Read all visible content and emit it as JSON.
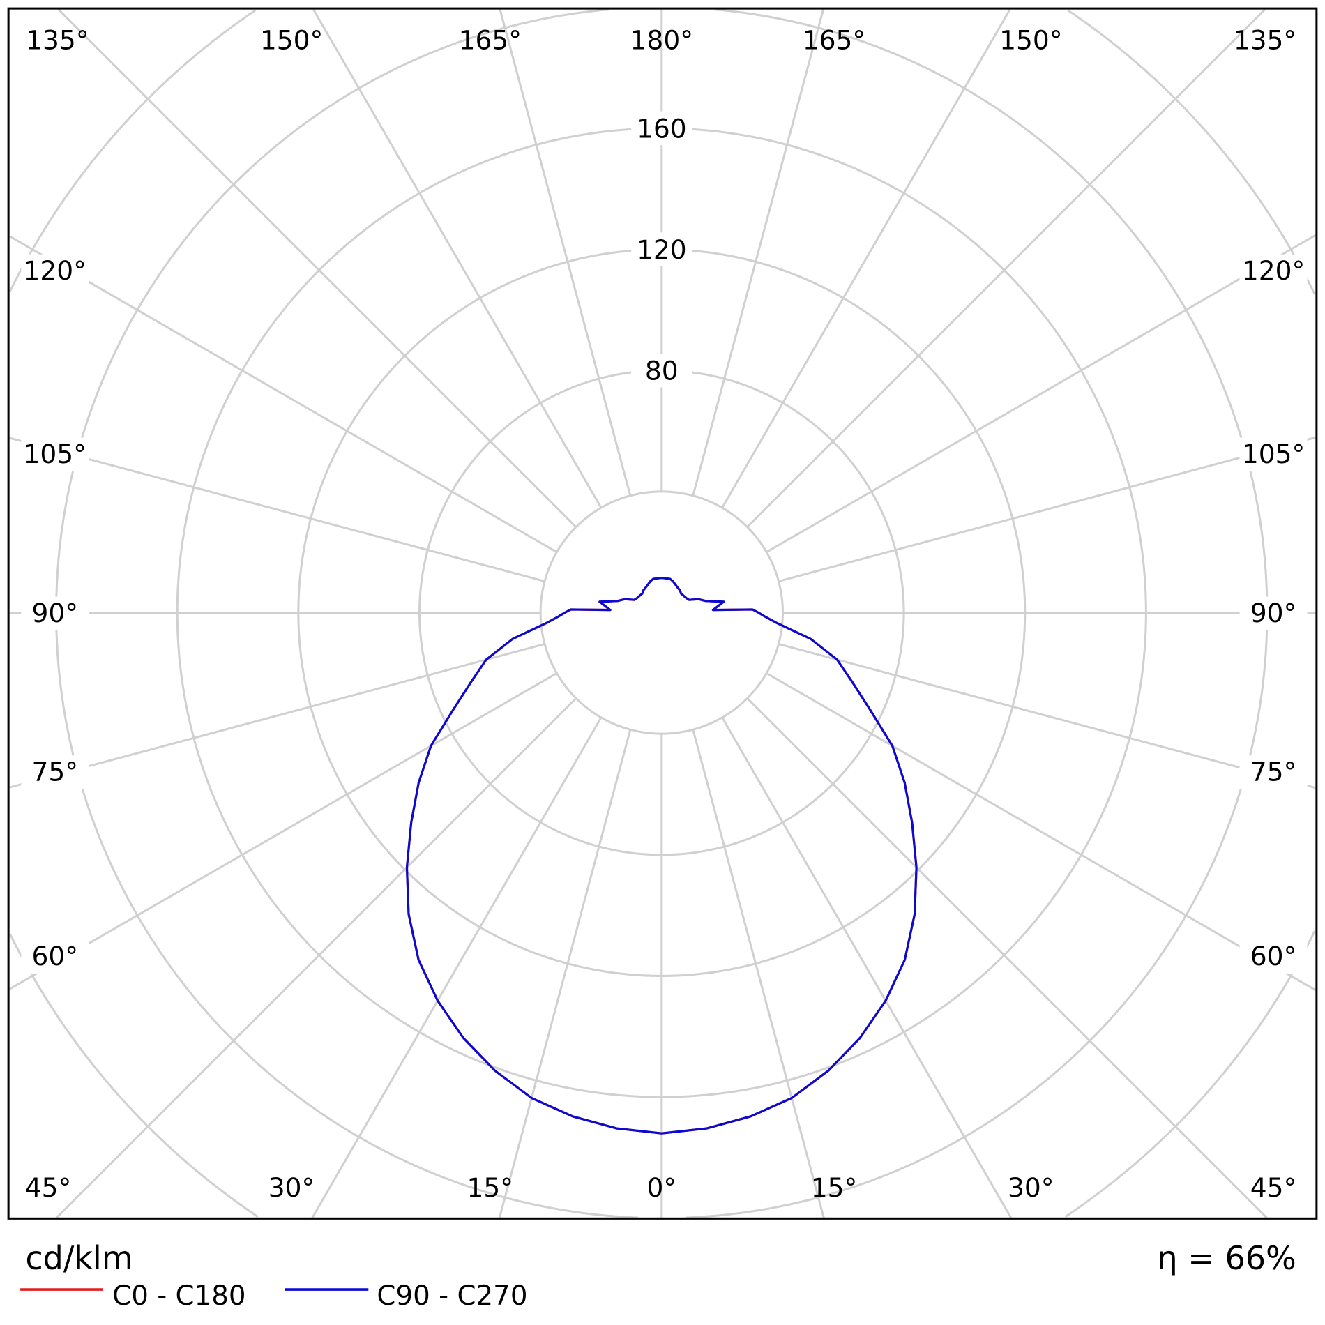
{
  "chart_data": {
    "type": "polar",
    "unit_label": "cd/klm",
    "efficiency_label": "η = 66%",
    "radial_ticks": [
      40,
      80,
      120,
      160,
      200,
      240
    ],
    "radial_tick_labels": [
      "80",
      "120",
      "160"
    ],
    "angle_labels": {
      "top": [
        "135°",
        "150°",
        "165°",
        "180°",
        "165°",
        "150°",
        "135°"
      ],
      "left": [
        "120°",
        "105°",
        "90°",
        "75°",
        "60°"
      ],
      "right": [
        "120°",
        "105°",
        "90°",
        "75°",
        "60°"
      ],
      "bottom": [
        "45°",
        "30°",
        "15°",
        "0°",
        "15°",
        "30°",
        "45°"
      ]
    },
    "grid": true,
    "legend_placement": "bottom-left",
    "series": [
      {
        "name": "C0 - C180",
        "color": "#e02020",
        "gamma": [
          0,
          5,
          10,
          15,
          20,
          25,
          30,
          35,
          40,
          45,
          50,
          55,
          60,
          65,
          70,
          75,
          80,
          85,
          88,
          90,
          92,
          93,
          100,
          105,
          110,
          115,
          120,
          135,
          140,
          150,
          160,
          166,
          180
        ],
        "values": [
          172,
          171,
          169,
          166,
          161,
          155,
          148,
          140,
          130,
          119,
          108,
          98,
          88,
          76,
          67,
          60,
          50,
          38,
          34,
          32,
          30,
          17,
          20.8,
          15,
          13,
          10,
          9.5,
          9,
          9.5,
          10,
          11,
          11.5,
          11.5
        ]
      },
      {
        "name": "C90 - C270",
        "color": "#0a0ad2",
        "gamma": [
          0,
          5,
          10,
          15,
          20,
          25,
          30,
          35,
          40,
          45,
          50,
          55,
          60,
          65,
          70,
          75,
          80,
          85,
          88,
          90,
          92,
          93,
          100,
          105,
          110,
          115,
          120,
          135,
          140,
          150,
          160,
          166,
          180
        ],
        "values": [
          172,
          171,
          169,
          166,
          161,
          155,
          148,
          140,
          130,
          119,
          108,
          98,
          88,
          76,
          67,
          60,
          50,
          38,
          34,
          32,
          30,
          17,
          20.8,
          15,
          13,
          10,
          9.5,
          9,
          9.5,
          10,
          11,
          11.5,
          11.5
        ]
      }
    ]
  }
}
